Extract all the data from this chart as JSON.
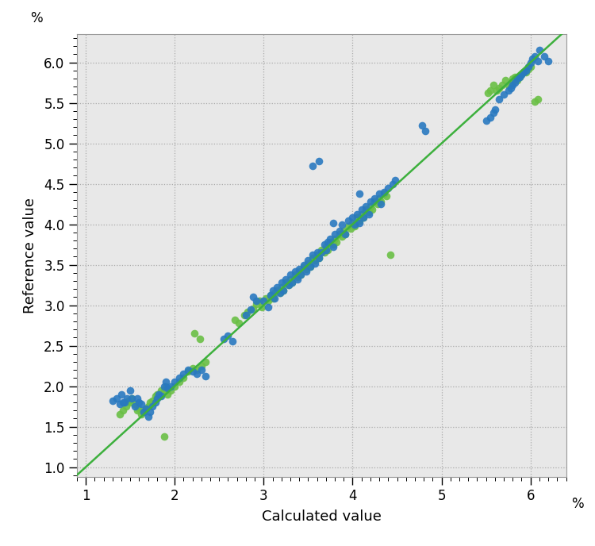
{
  "xlabel": "Calculated value",
  "ylabel": "Reference value",
  "xlabel_unit": "%",
  "ylabel_unit": "%",
  "xlim": [
    0.9,
    6.4
  ],
  "ylim": [
    0.88,
    6.35
  ],
  "xticks": [
    1,
    2,
    3,
    4,
    5,
    6
  ],
  "yticks": [
    1.0,
    1.5,
    2.0,
    2.5,
    3.0,
    3.5,
    4.0,
    4.5,
    5.0,
    5.5,
    6.0
  ],
  "line_color": "#3db03d",
  "line_x": [
    0.88,
    6.35
  ],
  "line_y": [
    0.88,
    6.35
  ],
  "blue_color": "#2979c0",
  "green_color": "#6abf45",
  "blue_points": [
    [
      1.3,
      1.82
    ],
    [
      1.35,
      1.85
    ],
    [
      1.38,
      1.78
    ],
    [
      1.4,
      1.9
    ],
    [
      1.42,
      1.8
    ],
    [
      1.44,
      1.8
    ],
    [
      1.46,
      1.85
    ],
    [
      1.5,
      1.95
    ],
    [
      1.52,
      1.85
    ],
    [
      1.55,
      1.75
    ],
    [
      1.58,
      1.85
    ],
    [
      1.6,
      1.8
    ],
    [
      1.62,
      1.78
    ],
    [
      1.65,
      1.68
    ],
    [
      1.68,
      1.72
    ],
    [
      1.7,
      1.62
    ],
    [
      1.72,
      1.68
    ],
    [
      1.75,
      1.75
    ],
    [
      1.78,
      1.8
    ],
    [
      1.8,
      1.85
    ],
    [
      1.82,
      1.9
    ],
    [
      1.85,
      1.88
    ],
    [
      1.88,
      2.0
    ],
    [
      1.9,
      2.05
    ],
    [
      1.92,
      1.98
    ],
    [
      1.95,
      2.0
    ],
    [
      2.0,
      2.05
    ],
    [
      2.05,
      2.1
    ],
    [
      2.1,
      2.15
    ],
    [
      2.15,
      2.2
    ],
    [
      2.2,
      2.18
    ],
    [
      2.25,
      2.15
    ],
    [
      2.3,
      2.2
    ],
    [
      2.35,
      2.12
    ],
    [
      2.55,
      2.58
    ],
    [
      2.6,
      2.62
    ],
    [
      2.65,
      2.55
    ],
    [
      2.8,
      2.88
    ],
    [
      2.85,
      2.95
    ],
    [
      2.88,
      3.1
    ],
    [
      2.92,
      3.05
    ],
    [
      3.0,
      3.05
    ],
    [
      3.05,
      2.98
    ],
    [
      3.08,
      3.12
    ],
    [
      3.1,
      3.18
    ],
    [
      3.12,
      3.08
    ],
    [
      3.15,
      3.22
    ],
    [
      3.18,
      3.15
    ],
    [
      3.2,
      3.28
    ],
    [
      3.22,
      3.18
    ],
    [
      3.25,
      3.32
    ],
    [
      3.28,
      3.25
    ],
    [
      3.3,
      3.38
    ],
    [
      3.32,
      3.28
    ],
    [
      3.35,
      3.42
    ],
    [
      3.38,
      3.32
    ],
    [
      3.4,
      3.45
    ],
    [
      3.42,
      3.38
    ],
    [
      3.45,
      3.5
    ],
    [
      3.48,
      3.42
    ],
    [
      3.5,
      3.55
    ],
    [
      3.52,
      3.48
    ],
    [
      3.55,
      3.62
    ],
    [
      3.58,
      3.52
    ],
    [
      3.6,
      3.65
    ],
    [
      3.62,
      3.58
    ],
    [
      3.65,
      3.65
    ],
    [
      3.68,
      3.75
    ],
    [
      3.7,
      3.68
    ],
    [
      3.72,
      3.78
    ],
    [
      3.75,
      3.82
    ],
    [
      3.78,
      3.72
    ],
    [
      3.8,
      3.88
    ],
    [
      3.85,
      3.92
    ],
    [
      3.88,
      4.0
    ],
    [
      3.92,
      3.88
    ],
    [
      3.95,
      4.05
    ],
    [
      4.0,
      4.08
    ],
    [
      4.05,
      4.12
    ],
    [
      4.08,
      4.02
    ],
    [
      4.1,
      4.18
    ],
    [
      4.12,
      4.08
    ],
    [
      4.15,
      4.22
    ],
    [
      4.18,
      4.12
    ],
    [
      4.2,
      4.28
    ],
    [
      4.25,
      4.32
    ],
    [
      4.3,
      4.38
    ],
    [
      4.32,
      4.25
    ],
    [
      4.35,
      4.4
    ],
    [
      4.4,
      4.45
    ],
    [
      4.45,
      4.5
    ],
    [
      4.48,
      4.55
    ],
    [
      3.78,
      4.02
    ],
    [
      4.02,
      4.0
    ],
    [
      4.08,
      4.38
    ],
    [
      3.55,
      4.72
    ],
    [
      3.62,
      4.78
    ],
    [
      4.78,
      5.22
    ],
    [
      4.82,
      5.15
    ],
    [
      5.5,
      5.28
    ],
    [
      5.55,
      5.32
    ],
    [
      5.58,
      5.38
    ],
    [
      5.6,
      5.42
    ],
    [
      5.65,
      5.55
    ],
    [
      5.7,
      5.6
    ],
    [
      5.75,
      5.65
    ],
    [
      5.78,
      5.68
    ],
    [
      5.8,
      5.72
    ],
    [
      5.82,
      5.75
    ],
    [
      5.85,
      5.8
    ],
    [
      5.88,
      5.82
    ],
    [
      5.9,
      5.85
    ],
    [
      5.92,
      5.88
    ],
    [
      5.95,
      5.9
    ],
    [
      5.98,
      5.95
    ],
    [
      6.0,
      6.0
    ],
    [
      6.02,
      6.05
    ],
    [
      6.05,
      6.08
    ],
    [
      6.08,
      6.02
    ],
    [
      6.1,
      6.15
    ],
    [
      6.15,
      6.08
    ],
    [
      6.2,
      6.02
    ]
  ],
  "green_points": [
    [
      1.38,
      1.65
    ],
    [
      1.42,
      1.7
    ],
    [
      1.45,
      1.75
    ],
    [
      1.48,
      1.82
    ],
    [
      1.5,
      1.8
    ],
    [
      1.52,
      1.85
    ],
    [
      1.55,
      1.78
    ],
    [
      1.58,
      1.7
    ],
    [
      1.6,
      1.72
    ],
    [
      1.62,
      1.65
    ],
    [
      1.65,
      1.68
    ],
    [
      1.68,
      1.72
    ],
    [
      1.7,
      1.75
    ],
    [
      1.72,
      1.8
    ],
    [
      1.75,
      1.82
    ],
    [
      1.78,
      1.88
    ],
    [
      1.8,
      1.9
    ],
    [
      1.82,
      1.88
    ],
    [
      1.85,
      1.95
    ],
    [
      1.88,
      1.95
    ],
    [
      1.9,
      2.0
    ],
    [
      1.92,
      1.9
    ],
    [
      1.95,
      1.95
    ],
    [
      2.0,
      2.0
    ],
    [
      2.05,
      2.05
    ],
    [
      2.1,
      2.1
    ],
    [
      2.15,
      2.18
    ],
    [
      2.2,
      2.22
    ],
    [
      2.25,
      2.2
    ],
    [
      2.3,
      2.25
    ],
    [
      2.35,
      2.3
    ],
    [
      1.88,
      1.38
    ],
    [
      2.22,
      2.65
    ],
    [
      2.28,
      2.58
    ],
    [
      2.68,
      2.82
    ],
    [
      2.72,
      2.78
    ],
    [
      2.78,
      2.88
    ],
    [
      2.82,
      2.92
    ],
    [
      2.88,
      2.96
    ],
    [
      2.92,
      3.02
    ],
    [
      2.95,
      3.05
    ],
    [
      2.98,
      2.98
    ],
    [
      3.02,
      3.08
    ],
    [
      3.05,
      3.05
    ],
    [
      3.08,
      3.12
    ],
    [
      3.1,
      3.08
    ],
    [
      3.12,
      3.15
    ],
    [
      3.15,
      3.18
    ],
    [
      3.18,
      3.15
    ],
    [
      3.2,
      3.22
    ],
    [
      3.22,
      3.18
    ],
    [
      3.25,
      3.28
    ],
    [
      3.28,
      3.25
    ],
    [
      3.3,
      3.32
    ],
    [
      3.32,
      3.28
    ],
    [
      3.35,
      3.38
    ],
    [
      3.38,
      3.35
    ],
    [
      3.4,
      3.42
    ],
    [
      3.42,
      3.38
    ],
    [
      3.45,
      3.48
    ],
    [
      3.48,
      3.45
    ],
    [
      3.5,
      3.52
    ],
    [
      3.52,
      3.48
    ],
    [
      3.55,
      3.58
    ],
    [
      3.58,
      3.55
    ],
    [
      3.6,
      3.62
    ],
    [
      3.62,
      3.58
    ],
    [
      3.65,
      3.68
    ],
    [
      3.68,
      3.65
    ],
    [
      3.7,
      3.72
    ],
    [
      3.72,
      3.68
    ],
    [
      3.75,
      3.78
    ],
    [
      3.78,
      3.75
    ],
    [
      3.8,
      3.82
    ],
    [
      3.82,
      3.78
    ],
    [
      3.85,
      3.88
    ],
    [
      3.88,
      3.85
    ],
    [
      3.9,
      3.92
    ],
    [
      3.92,
      3.88
    ],
    [
      3.95,
      3.98
    ],
    [
      3.98,
      3.95
    ],
    [
      4.0,
      4.02
    ],
    [
      4.02,
      3.98
    ],
    [
      4.05,
      4.08
    ],
    [
      4.08,
      4.05
    ],
    [
      4.1,
      4.12
    ],
    [
      4.12,
      4.08
    ],
    [
      4.15,
      4.18
    ],
    [
      4.18,
      4.15
    ],
    [
      4.2,
      4.22
    ],
    [
      4.22,
      4.18
    ],
    [
      4.25,
      4.28
    ],
    [
      4.28,
      4.25
    ],
    [
      4.3,
      4.32
    ],
    [
      4.32,
      4.28
    ],
    [
      4.35,
      4.38
    ],
    [
      4.38,
      4.35
    ],
    [
      4.42,
      3.62
    ],
    [
      5.52,
      5.62
    ],
    [
      5.55,
      5.65
    ],
    [
      5.58,
      5.72
    ],
    [
      5.62,
      5.65
    ],
    [
      5.65,
      5.68
    ],
    [
      5.68,
      5.72
    ],
    [
      5.72,
      5.78
    ],
    [
      5.75,
      5.72
    ],
    [
      5.78,
      5.75
    ],
    [
      5.8,
      5.8
    ],
    [
      5.82,
      5.82
    ],
    [
      5.85,
      5.78
    ],
    [
      5.88,
      5.82
    ],
    [
      5.9,
      5.85
    ],
    [
      5.92,
      5.88
    ],
    [
      5.95,
      5.88
    ],
    [
      5.98,
      5.92
    ],
    [
      6.0,
      5.95
    ],
    [
      6.05,
      5.52
    ],
    [
      6.08,
      5.55
    ]
  ],
  "dot_size": 48,
  "dot_alpha": 0.9,
  "grid_color": "#aaaaaa",
  "grid_style": ":",
  "background_color": "#e8e8e8",
  "spine_color": "#999999",
  "fig_width": 7.5,
  "fig_height": 6.88,
  "dpi": 100
}
